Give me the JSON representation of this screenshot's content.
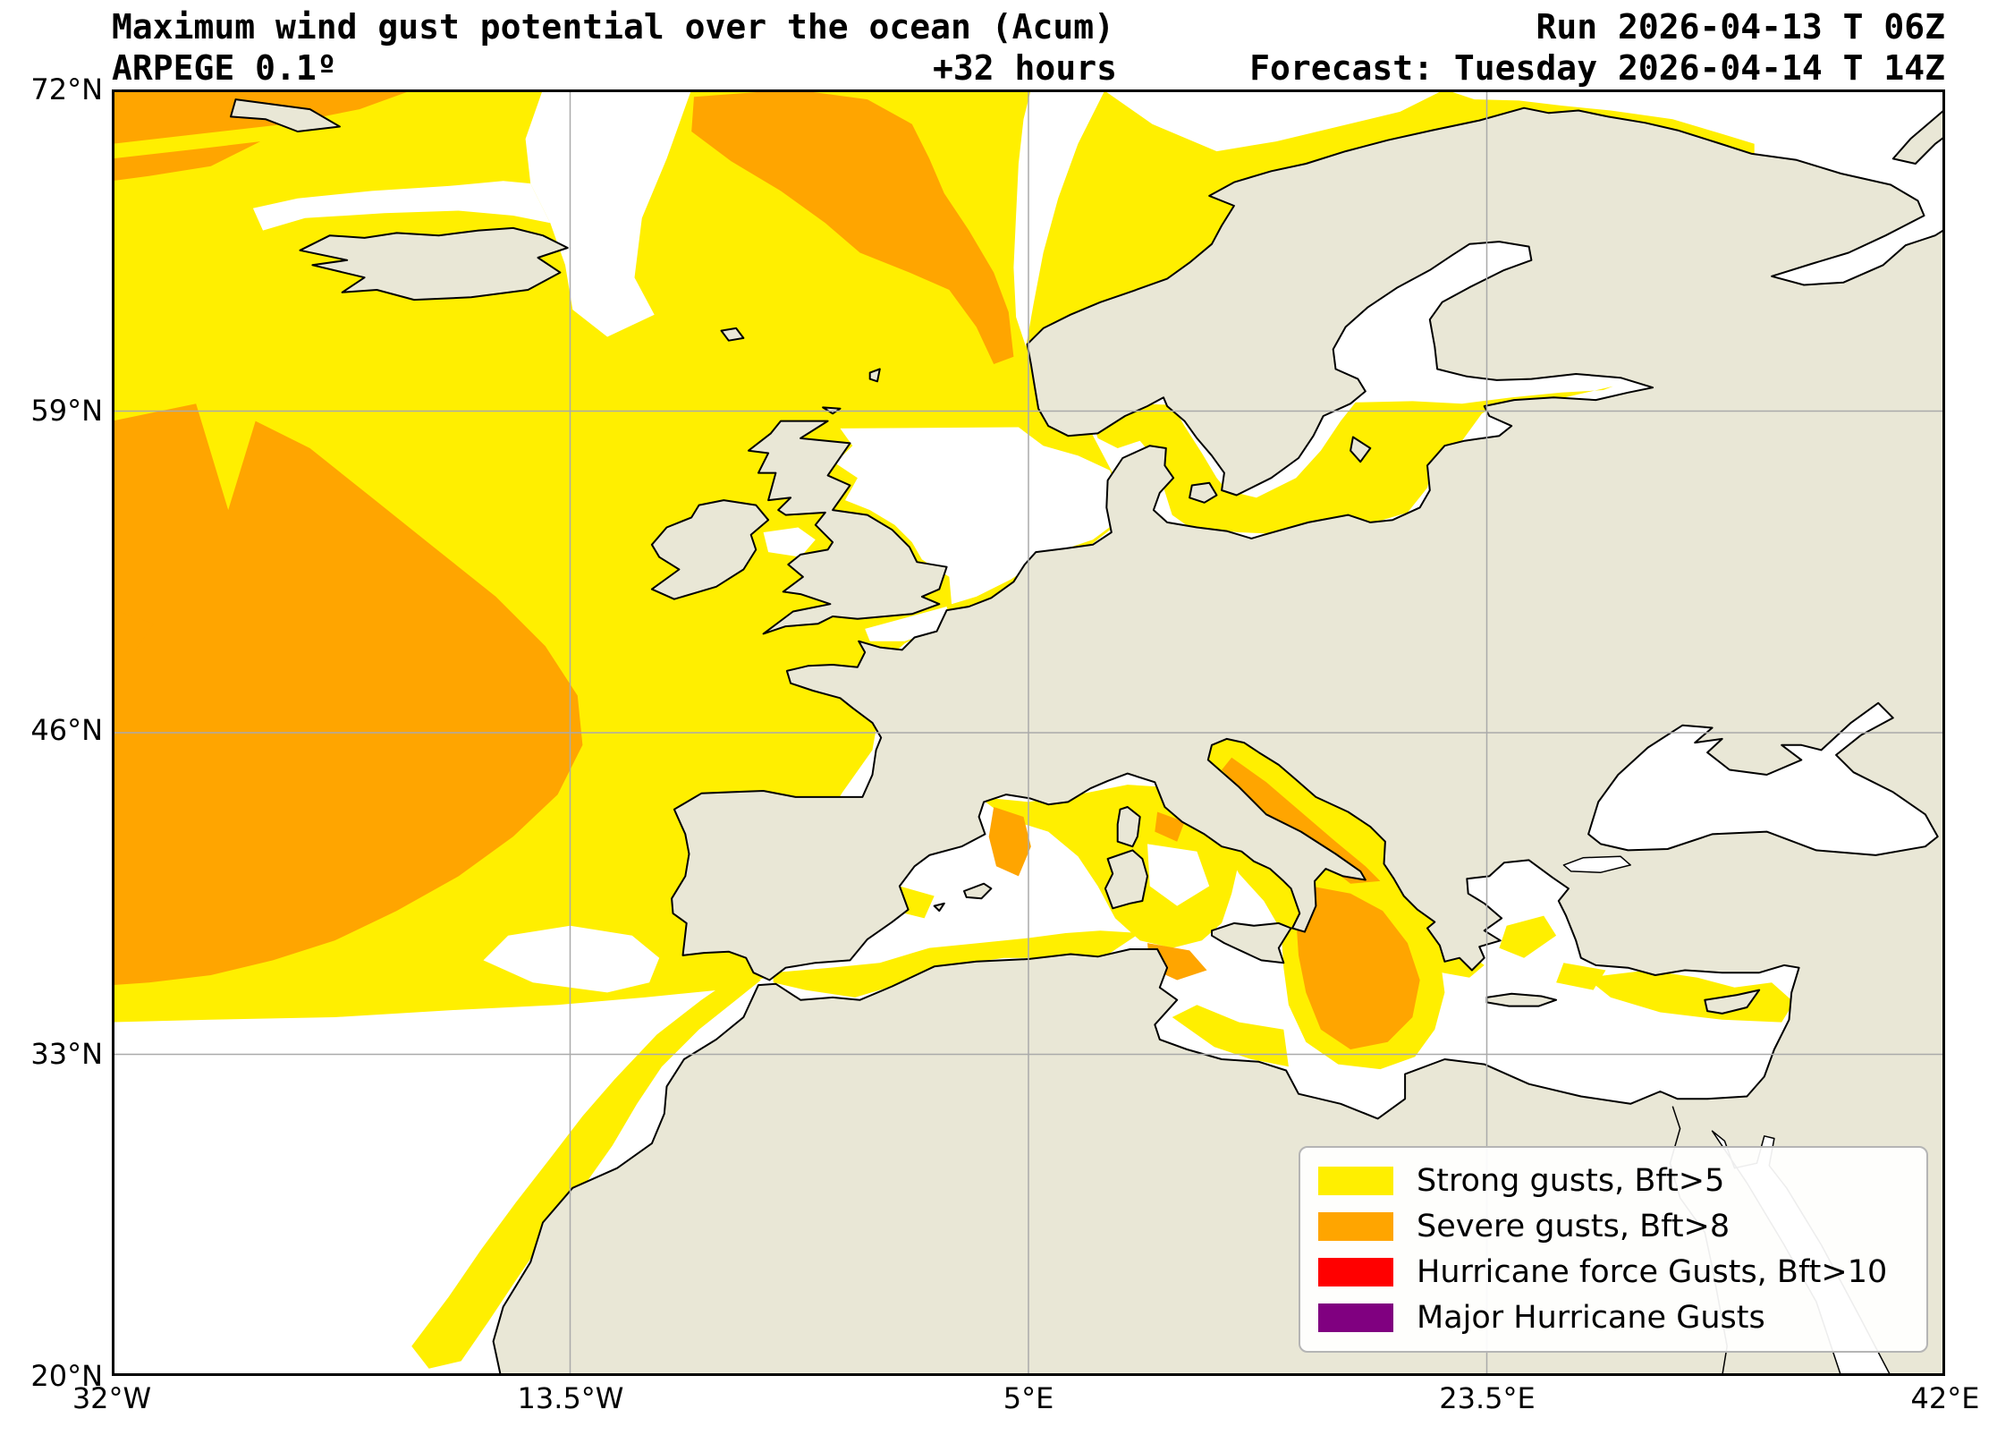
{
  "header": {
    "title": "Maximum wind gust potential over the ocean (Acum)",
    "model": "ARPEGE 0.1º",
    "lead_time": "+32 hours",
    "run": "Run 2026-04-13 T 06Z",
    "forecast": "Forecast: Tuesday 2026-04-14 T 14Z"
  },
  "map": {
    "extent": {
      "lon_min": -32,
      "lon_max": 42,
      "lat_min": 20,
      "lat_max": 72
    },
    "y_ticks": [
      "72°N",
      "59°N",
      "46°N",
      "33°N",
      "20°N"
    ],
    "x_ticks": [
      "32°W",
      "13.5°W",
      "5°E",
      "23.5°E",
      "42°E"
    ],
    "colors": {
      "land": "#e9e7d6",
      "ocean": "#ffffff",
      "strong": "#ffef00",
      "severe": "#ffa500",
      "hurricane": "#ff0000",
      "major_hurricane": "#800080",
      "grid": "#aaaaaa",
      "coast": "#000000"
    }
  },
  "legend": {
    "items": [
      {
        "label": "Strong gusts, Bft>5",
        "color": "#ffef00"
      },
      {
        "label": "Severe gusts, Bft>8",
        "color": "#ffa500"
      },
      {
        "label": "Hurricane force Gusts, Bft>10",
        "color": "#ff0000"
      },
      {
        "label": "Major Hurricane Gusts",
        "color": "#800080"
      }
    ]
  }
}
